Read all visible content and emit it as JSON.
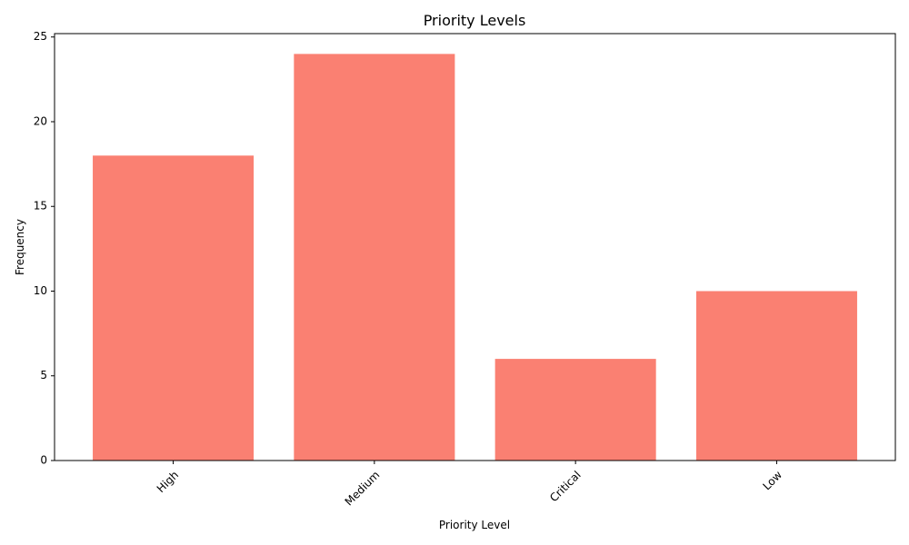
{
  "chart_data": {
    "type": "bar",
    "title": "Priority Levels",
    "xlabel": "Priority Level",
    "ylabel": "Frequency",
    "categories": [
      "High",
      "Medium",
      "Critical",
      "Low"
    ],
    "values": [
      18,
      24,
      6,
      10
    ],
    "ylim": [
      0,
      25.2
    ],
    "yticks": [
      0,
      5,
      10,
      15,
      20,
      25
    ],
    "bar_color": "#fa8072",
    "xtick_rotation_deg": 45,
    "grid": false,
    "legend": "none"
  }
}
